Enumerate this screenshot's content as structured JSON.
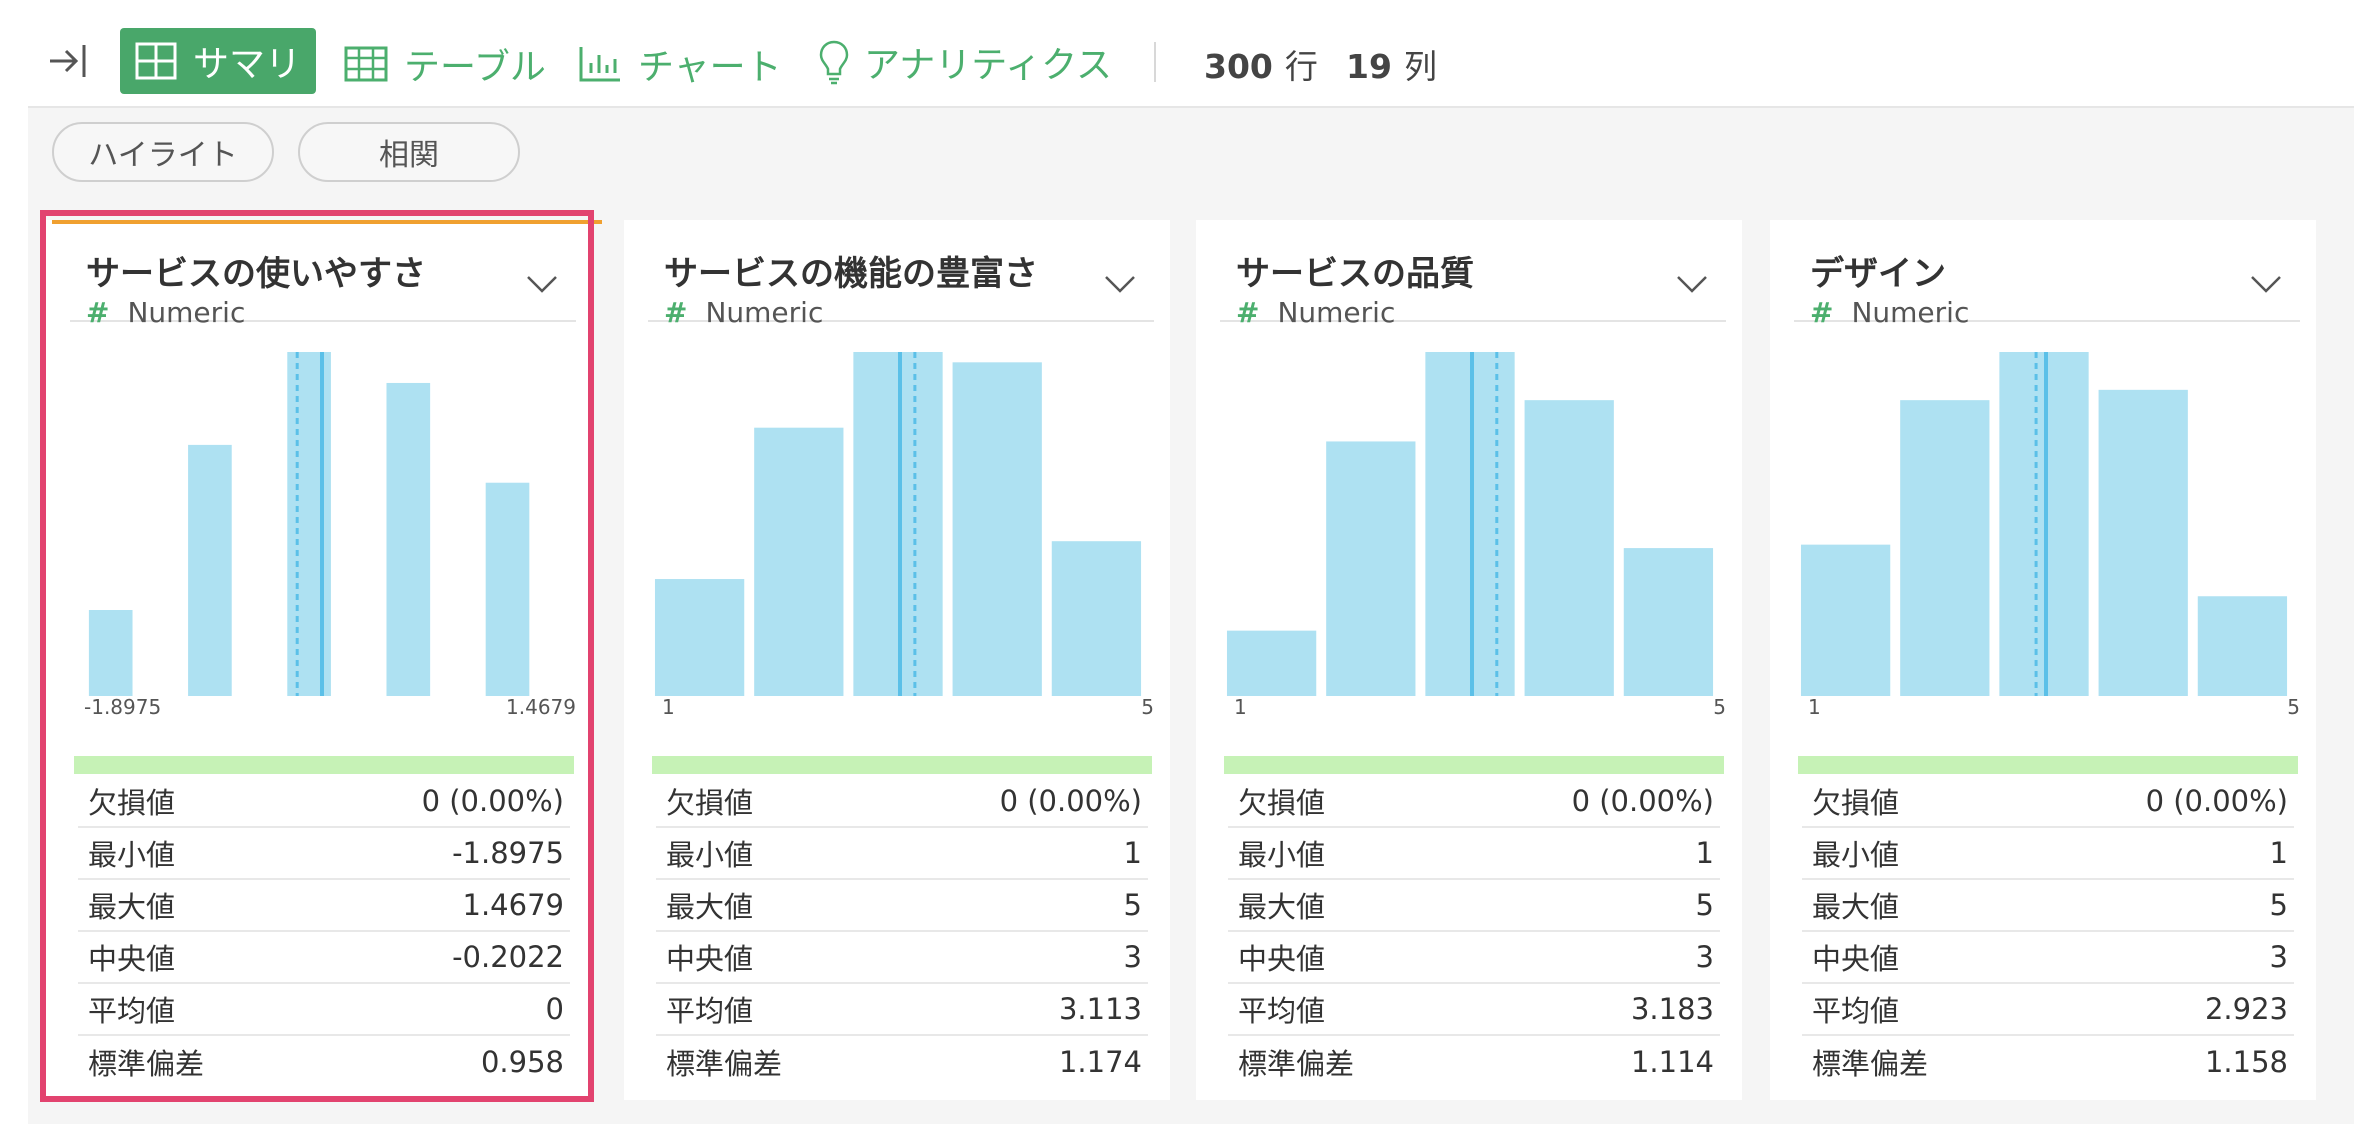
{
  "toolbar": {
    "tabs": [
      {
        "label": "サマリ",
        "icon": "summary-grid-icon",
        "active": true
      },
      {
        "label": "テーブル",
        "icon": "table-icon"
      },
      {
        "label": "チャート",
        "icon": "bar-chart-icon"
      },
      {
        "label": "アナリティクス",
        "icon": "lightbulb-icon"
      }
    ],
    "rows_value": "300",
    "rows_unit": "行",
    "cols_value": "19",
    "cols_unit": "列"
  },
  "filters": {
    "highlight": "ハイライト",
    "correlation": "相関"
  },
  "colors": {
    "accent": "#49a76a",
    "bar": "#aee1f2",
    "median": "#5bc0e8",
    "range": "#c6f2b6",
    "highlight": "#e2436f"
  },
  "stat_labels": [
    "欠損値",
    "最小値",
    "最大値",
    "中央値",
    "平均値",
    "標準偏差"
  ],
  "columns": [
    {
      "title": "サービスの使いやすさ",
      "type": "Numeric",
      "axis_min": "-1.8975",
      "axis_max": "1.4679",
      "bars": [
        0.25,
        0.73,
        1.0,
        0.91,
        0.62
      ],
      "bar_style": "narrow",
      "median_pos": 0.5,
      "mean_pos": 0.45,
      "stats": [
        "0 (0.00%)",
        "-1.8975",
        "1.4679",
        "-0.2022",
        "0",
        "0.958"
      ]
    },
    {
      "title": "サービスの機能の豊富さ",
      "type": "Numeric",
      "axis_min": "1",
      "axis_max": "5",
      "bars": [
        0.34,
        0.78,
        1.0,
        0.97,
        0.45
      ],
      "bar_style": "wide",
      "median_pos": 0.5,
      "mean_pos": 0.53,
      "stats": [
        "0 (0.00%)",
        "1",
        "5",
        "3",
        "3.113",
        "1.174"
      ]
    },
    {
      "title": "サービスの品質",
      "type": "Numeric",
      "axis_min": "1",
      "axis_max": "5",
      "bars": [
        0.19,
        0.74,
        1.0,
        0.86,
        0.43
      ],
      "bar_style": "wide",
      "median_pos": 0.5,
      "mean_pos": 0.55,
      "stats": [
        "0 (0.00%)",
        "1",
        "5",
        "3",
        "3.183",
        "1.114"
      ]
    },
    {
      "title": "デザイン",
      "type": "Numeric",
      "axis_min": "1",
      "axis_max": "5",
      "bars": [
        0.44,
        0.86,
        1.0,
        0.89,
        0.29
      ],
      "bar_style": "wide",
      "median_pos": 0.5,
      "mean_pos": 0.48,
      "stats": [
        "0 (0.00%)",
        "1",
        "5",
        "3",
        "2.923",
        "1.158"
      ]
    }
  ]
}
